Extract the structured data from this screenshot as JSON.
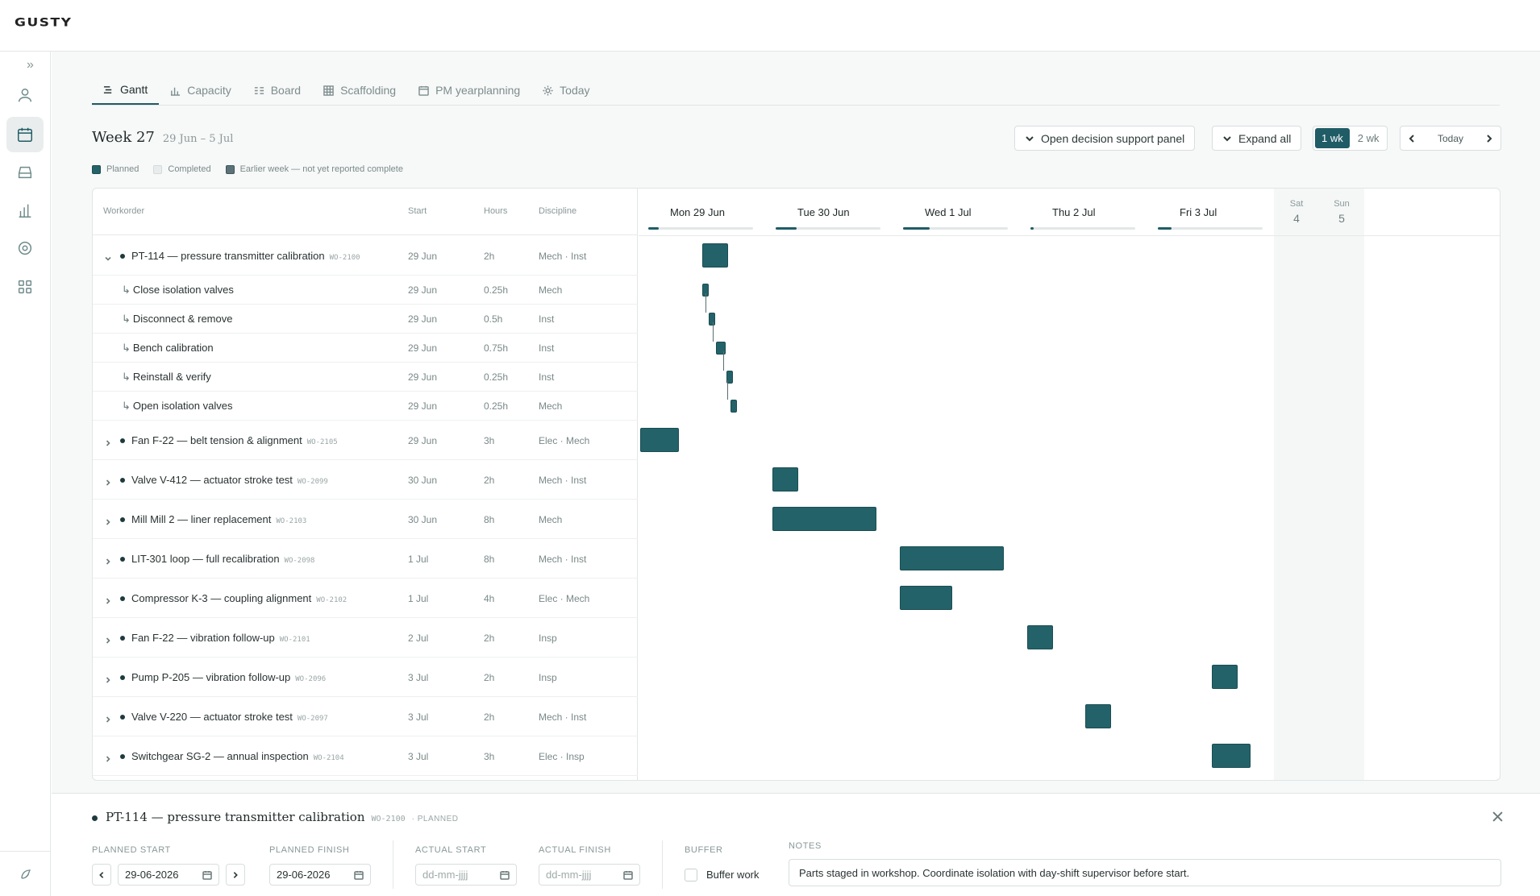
{
  "app": {
    "logo": "GUSTY"
  },
  "sidebar": {
    "items": [
      {
        "icon": "user-icon"
      },
      {
        "icon": "calendar-icon",
        "active": true
      },
      {
        "icon": "inbox-icon"
      },
      {
        "icon": "bar-chart-icon"
      },
      {
        "icon": "gear-icon"
      },
      {
        "icon": "grid-icon"
      }
    ],
    "footer_icon": "logo-mark-icon"
  },
  "tabs": [
    {
      "label": "Gantt",
      "icon": "gantt-icon",
      "active": true
    },
    {
      "label": "Capacity",
      "icon": "capacity-icon"
    },
    {
      "label": "Board",
      "icon": "board-icon"
    },
    {
      "label": "Scaffolding",
      "icon": "scaffolding-icon"
    },
    {
      "label": "PM yearplanning",
      "icon": "calendar-icon"
    },
    {
      "label": "Today",
      "icon": "sun-icon"
    }
  ],
  "week": {
    "title": "Week 27",
    "range": "29 Jun – 5 Jul"
  },
  "toolbar": {
    "decision_label": "Open decision support panel",
    "expand_label": "Expand all",
    "span_1": "1 wk",
    "span_2": "2 wk",
    "active_span": "1 wk",
    "today_label": "Today"
  },
  "legend": [
    {
      "label": "Planned",
      "color": "#246269"
    },
    {
      "label": "Completed",
      "color": "#e8ecec"
    },
    {
      "label": "Earlier week — not yet reported complete",
      "color": "#5b7378"
    }
  ],
  "columns": {
    "workorder": "Workorder",
    "start": "Start",
    "hours": "Hours",
    "discipline": "Discipline"
  },
  "days": [
    {
      "label": "Mon 29 Jun",
      "load": 0.1
    },
    {
      "label": "Tue 30 Jun",
      "load": 0.2
    },
    {
      "label": "Wed 1 Jul",
      "load": 0.25
    },
    {
      "label": "Thu 2 Jul",
      "load": 0.03
    },
    {
      "label": "Fri 3 Jul",
      "load": 0.13
    }
  ],
  "weekend": [
    {
      "name": "Sat",
      "num": "4"
    },
    {
      "name": "Sun",
      "num": "5"
    }
  ],
  "workorders": [
    {
      "title": "PT-114 — pressure transmitter calibration",
      "wo": "WO-2100",
      "start": "29 Jun",
      "hours": "2h",
      "discipline": "Mech · Inst",
      "expanded": true,
      "subtasks": [
        {
          "title": "Close isolation valves",
          "start": "29 Jun",
          "hours": "0.25h",
          "discipline": "Mech"
        },
        {
          "title": "Disconnect & remove",
          "start": "29 Jun",
          "hours": "0.5h",
          "discipline": "Inst"
        },
        {
          "title": "Bench calibration",
          "start": "29 Jun",
          "hours": "0.75h",
          "discipline": "Inst"
        },
        {
          "title": "Reinstall & verify",
          "start": "29 Jun",
          "hours": "0.25h",
          "discipline": "Inst"
        },
        {
          "title": "Open isolation valves",
          "start": "29 Jun",
          "hours": "0.25h",
          "discipline": "Mech"
        }
      ]
    },
    {
      "title": "Fan F-22 — belt tension & alignment",
      "wo": "WO-2105",
      "start": "29 Jun",
      "hours": "3h",
      "discipline": "Elec · Mech"
    },
    {
      "title": "Valve V-412 — actuator stroke test",
      "wo": "WO-2099",
      "start": "30 Jun",
      "hours": "2h",
      "discipline": "Mech · Inst"
    },
    {
      "title": "Mill Mill 2 — liner replacement",
      "wo": "WO-2103",
      "start": "30 Jun",
      "hours": "8h",
      "discipline": "Mech"
    },
    {
      "title": "LIT-301 loop — full recalibration",
      "wo": "WO-2098",
      "start": "1 Jul",
      "hours": "8h",
      "discipline": "Mech · Inst"
    },
    {
      "title": "Compressor K-3 — coupling alignment",
      "wo": "WO-2102",
      "start": "1 Jul",
      "hours": "4h",
      "discipline": "Elec · Mech"
    },
    {
      "title": "Fan F-22 — vibration follow-up",
      "wo": "WO-2101",
      "start": "2 Jul",
      "hours": "2h",
      "discipline": "Insp"
    },
    {
      "title": "Pump P-205 — vibration follow-up",
      "wo": "WO-2096",
      "start": "3 Jul",
      "hours": "2h",
      "discipline": "Insp"
    },
    {
      "title": "Valve V-220 — actuator stroke test",
      "wo": "WO-2097",
      "start": "3 Jul",
      "hours": "2h",
      "discipline": "Mech · Inst"
    },
    {
      "title": "Switchgear SG-2 — annual inspection",
      "wo": "WO-2104",
      "start": "3 Jul",
      "hours": "3h",
      "discipline": "Elec · Insp"
    }
  ],
  "detail": {
    "title": "PT-114 — pressure transmitter calibration",
    "wo": "WO-2100",
    "status": "· PLANNED",
    "planned_start_label": "PLANNED START",
    "planned_start": "29-06-2026",
    "planned_finish_label": "PLANNED FINISH",
    "planned_finish": "29-06-2026",
    "actual_start_label": "ACTUAL START",
    "actual_start_placeholder": "dd-mm-jjjj",
    "actual_finish_label": "ACTUAL FINISH",
    "actual_finish_placeholder": "dd-mm-jjjj",
    "buffer_label": "BUFFER",
    "buffer_option": "Buffer work",
    "notes_label": "NOTES",
    "notes": "Parts staged in workshop. Coordinate isolation with day-shift supervisor before start."
  }
}
